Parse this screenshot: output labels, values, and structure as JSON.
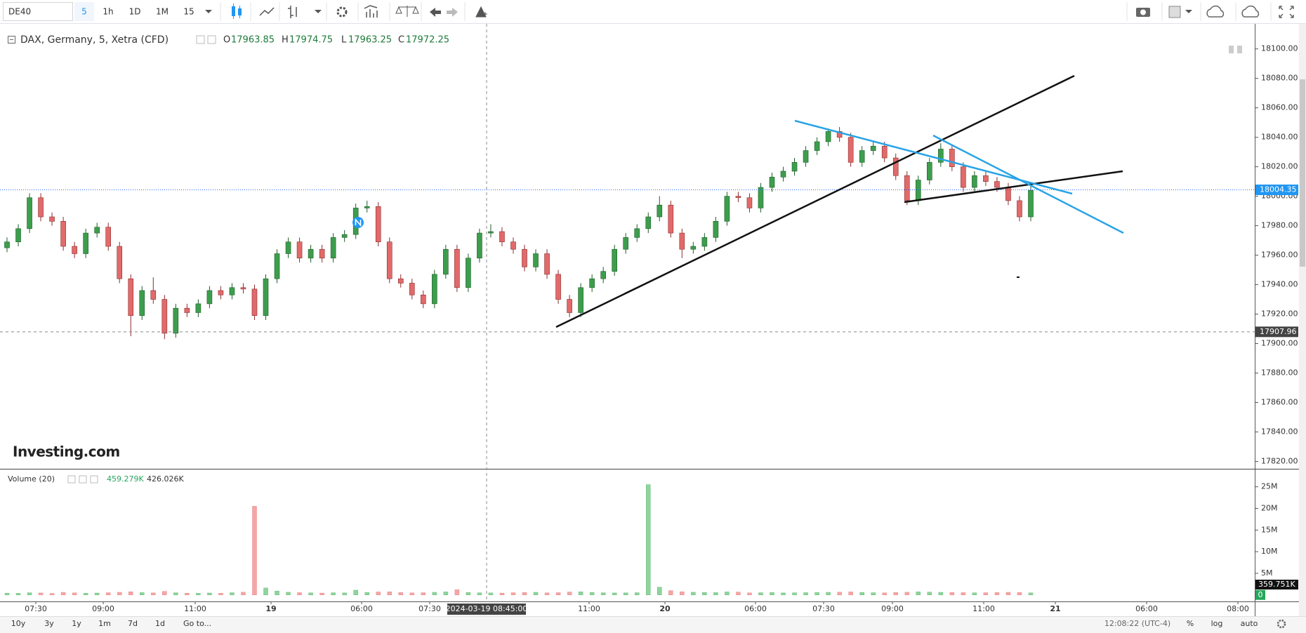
{
  "toolbar": {
    "symbol": "DE40",
    "intervals": [
      "5",
      "1h",
      "1D",
      "1M",
      "15"
    ]
  },
  "legend": {
    "title": "DAX, Germany, 5, Xetra (CFD)",
    "ohlc": [
      {
        "label": "O",
        "value": 17963.85
      },
      {
        "label": "H",
        "value": 17974.75
      },
      {
        "label": "L",
        "value": 17963.25
      },
      {
        "label": "C",
        "value": 17972.25
      }
    ]
  },
  "watermark": "Investing.com",
  "volume_legend": {
    "title": "Volume (20)",
    "values": [
      "459.279K",
      "426.026K"
    ]
  },
  "bottom_bar": {
    "ranges": [
      "10y",
      "3y",
      "1y",
      "1m",
      "7d",
      "1d"
    ],
    "goto": "Go to...",
    "clock": "12:08:22 (UTC-4)",
    "options": [
      "%",
      "log",
      "auto"
    ]
  },
  "chart_data": [
    {
      "type": "candlestick",
      "up_color": "#3c9e4c",
      "down_color": "#e26a6a",
      "ylim": [
        17815,
        18117
      ],
      "yticks": [
        {
          "value": 18100,
          "label": "18100.00"
        },
        {
          "value": 18080,
          "label": "18080.00"
        },
        {
          "value": 18060,
          "label": "18060.00"
        },
        {
          "value": 18040,
          "label": "18040.00"
        },
        {
          "value": 18020,
          "label": "18020.00"
        },
        {
          "value": 18000,
          "label": "18000.00"
        },
        {
          "value": 17980,
          "label": "17980.00"
        },
        {
          "value": 17960,
          "label": "17960.00"
        },
        {
          "value": 17940,
          "label": "17940.00"
        },
        {
          "value": 17920,
          "label": "17920.00"
        },
        {
          "value": 17900,
          "label": "17900.00"
        },
        {
          "value": 17880,
          "label": "17880.00"
        },
        {
          "value": 17860,
          "label": "17860.00"
        },
        {
          "value": 17840,
          "label": "17840.00"
        },
        {
          "value": 17820,
          "label": "17820.00"
        }
      ],
      "last_price": 18004.35,
      "crosshair_price": 17907.96,
      "crosshair_time": "2024-03-19 08:45:00",
      "x_labels": [
        "07:30",
        "09:00",
        "11:00",
        "19",
        "06:00",
        "07:30",
        "11:00",
        "20",
        "06:00",
        "07:30",
        "09:00",
        "11:00",
        "21",
        "06:00",
        "08:00"
      ],
      "candles": [
        [
          17965,
          17972,
          17962,
          17969
        ],
        [
          17969,
          17981,
          17966,
          17978
        ],
        [
          17978,
          18002,
          17975,
          17999
        ],
        [
          17999,
          18002,
          17983,
          17986
        ],
        [
          17986,
          17989,
          17980,
          17983
        ],
        [
          17983,
          17986,
          17963,
          17966
        ],
        [
          17966,
          17969,
          17958,
          17961
        ],
        [
          17961,
          17978,
          17958,
          17975
        ],
        [
          17975,
          17982,
          17972,
          17979
        ],
        [
          17979,
          17982,
          17963,
          17966
        ],
        [
          17966,
          17969,
          17941,
          17944
        ],
        [
          17944,
          17947,
          17905,
          17919
        ],
        [
          17919,
          17939,
          17916,
          17936
        ],
        [
          17936,
          17945,
          17927,
          17930
        ],
        [
          17930,
          17933,
          17903,
          17907
        ],
        [
          17907,
          17927,
          17904,
          17924
        ],
        [
          17924,
          17927,
          17918,
          17921
        ],
        [
          17921,
          17930,
          17918,
          17927
        ],
        [
          17927,
          17939,
          17924,
          17936
        ],
        [
          17936,
          17939,
          17930,
          17933
        ],
        [
          17933,
          17941,
          17930,
          17938
        ],
        [
          17938,
          17941,
          17934,
          17937
        ],
        [
          17937,
          17940,
          17916,
          17919
        ],
        [
          17919,
          17947,
          17916,
          17944
        ],
        [
          17944,
          17964,
          17941,
          17961
        ],
        [
          17961,
          17972,
          17958,
          17969
        ],
        [
          17969,
          17972,
          17955,
          17958
        ],
        [
          17958,
          17967,
          17955,
          17964
        ],
        [
          17964,
          17967,
          17955,
          17958
        ],
        [
          17958,
          17975,
          17955,
          17972
        ],
        [
          17972,
          17977,
          17969,
          17974
        ],
        [
          17974,
          17995,
          17971,
          17992
        ],
        [
          17992,
          17997,
          17989,
          17993
        ],
        [
          17993,
          17996,
          17966,
          17969
        ],
        [
          17969,
          17972,
          17941,
          17944
        ],
        [
          17944,
          17947,
          17938,
          17941
        ],
        [
          17941,
          17944,
          17930,
          17933
        ],
        [
          17933,
          17936,
          17924,
          17927
        ],
        [
          17927,
          17950,
          17924,
          17947
        ],
        [
          17947,
          17967,
          17944,
          17964
        ],
        [
          17964,
          17967,
          17935,
          17938
        ],
        [
          17938,
          17961,
          17935,
          17958
        ],
        [
          17958,
          17978,
          17955,
          17975
        ],
        [
          17975,
          17981,
          17972,
          17976
        ],
        [
          17976,
          17979,
          17966,
          17969
        ],
        [
          17969,
          17972,
          17961,
          17964
        ],
        [
          17964,
          17967,
          17949,
          17952
        ],
        [
          17952,
          17964,
          17949,
          17961
        ],
        [
          17961,
          17964,
          17944,
          17947
        ],
        [
          17947,
          17950,
          17927,
          17930
        ],
        [
          17930,
          17933,
          17918,
          17921
        ],
        [
          17921,
          17941,
          17918,
          17938
        ],
        [
          17938,
          17947,
          17935,
          17944
        ],
        [
          17944,
          17952,
          17941,
          17949
        ],
        [
          17949,
          17967,
          17946,
          17964
        ],
        [
          17964,
          17975,
          17961,
          17972
        ],
        [
          17972,
          17981,
          17969,
          17978
        ],
        [
          17978,
          17989,
          17975,
          17986
        ],
        [
          17986,
          18000,
          17983,
          17994
        ],
        [
          17994,
          17997,
          17972,
          17975
        ],
        [
          17975,
          17978,
          17958,
          17964
        ],
        [
          17964,
          17969,
          17961,
          17966
        ],
        [
          17966,
          17975,
          17963,
          17972
        ],
        [
          17972,
          17986,
          17969,
          17983
        ],
        [
          17983,
          18003,
          17980,
          18000
        ],
        [
          18000,
          18003,
          17996,
          17999
        ],
        [
          17999,
          18002,
          17989,
          17992
        ],
        [
          17992,
          18009,
          17989,
          18006
        ],
        [
          18006,
          18016,
          18003,
          18013
        ],
        [
          18013,
          18020,
          18010,
          18017
        ],
        [
          18017,
          18026,
          18014,
          18023
        ],
        [
          18023,
          18034,
          18020,
          18031
        ],
        [
          18031,
          18040,
          18028,
          18037
        ],
        [
          18037,
          18046,
          18034,
          18044
        ],
        [
          18044,
          18047,
          18037,
          18040
        ],
        [
          18040,
          18043,
          18020,
          18023
        ],
        [
          18023,
          18034,
          18020,
          18031
        ],
        [
          18031,
          18037,
          18028,
          18034
        ],
        [
          18034,
          18037,
          18023,
          18026
        ],
        [
          18026,
          18029,
          18011,
          18014
        ],
        [
          18014,
          18017,
          17994,
          17997
        ],
        [
          17997,
          18014,
          17994,
          18011
        ],
        [
          18011,
          18026,
          18008,
          18023
        ],
        [
          18023,
          18036,
          18020,
          18032
        ],
        [
          18032,
          18035,
          18017,
          18020
        ],
        [
          18020,
          18023,
          18003,
          18006
        ],
        [
          18006,
          18017,
          18003,
          18014
        ],
        [
          18014,
          18017,
          18007,
          18010
        ],
        [
          18010,
          18013,
          18003,
          18006
        ],
        [
          18006,
          18009,
          17994,
          17997
        ],
        [
          17997,
          18000,
          17983,
          17986
        ],
        [
          17986,
          18007,
          17983,
          18004
        ]
      ]
    },
    {
      "type": "bar",
      "up_color": "#8fd49b",
      "down_color": "#f4a6a6",
      "ylim": [
        -1500000,
        29000000
      ],
      "yticks": [
        {
          "value": 25000000,
          "label": "25M"
        },
        {
          "value": 20000000,
          "label": "20M"
        },
        {
          "value": 15000000,
          "label": "15M"
        },
        {
          "value": 10000000,
          "label": "10M"
        },
        {
          "value": 5000000,
          "label": "5M"
        },
        0
      ],
      "last_value": {
        "value": 359751,
        "label": "359.751K"
      },
      "values": [
        420000,
        380000,
        510000,
        460000,
        350000,
        600000,
        480000,
        390000,
        440000,
        520000,
        610000,
        730000,
        540000,
        470000,
        820000,
        500000,
        410000,
        380000,
        450000,
        400000,
        520000,
        640000,
        20500000,
        1600000,
        900000,
        620000,
        540000,
        480000,
        430000,
        510000,
        470000,
        1100000,
        580000,
        690000,
        720000,
        560000,
        480000,
        520000,
        610000,
        700000,
        1200000,
        580000,
        500000,
        470000,
        430000,
        520000,
        560000,
        610000,
        490000,
        530000,
        680000,
        720000,
        590000,
        500000,
        460000,
        480000,
        520000,
        25500000,
        1800000,
        1000000,
        740000,
        620000,
        580000,
        540000,
        700000,
        660000,
        480000,
        520000,
        560000,
        470000,
        500000,
        530000,
        560000,
        600000,
        640000,
        700000,
        580000,
        520000,
        490000,
        560000,
        620000,
        710000,
        650000,
        600000,
        580000,
        540000,
        500000,
        520000,
        560000,
        610000,
        590000,
        480000
      ]
    }
  ]
}
